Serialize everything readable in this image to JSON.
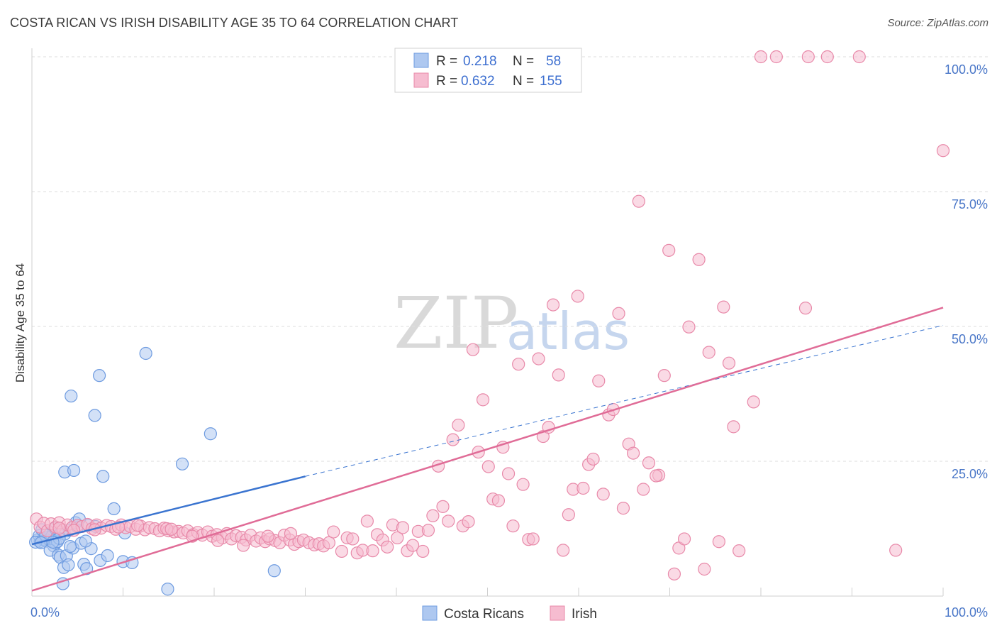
{
  "title": "COSTA RICAN VS IRISH DISABILITY AGE 35 TO 64 CORRELATION CHART",
  "source": "Source: ZipAtlas.com",
  "watermark": {
    "zip": "ZIP",
    "atlas": "atlas"
  },
  "legend": {
    "r_label": "R =",
    "n_label": "N =",
    "rows": [
      {
        "r": "0.218",
        "n": "58"
      },
      {
        "r": "0.632",
        "n": "155"
      }
    ]
  },
  "colors": {
    "costa_fill": "#aec8f0",
    "costa_stroke": "#6e9be0",
    "costa_line": "#3a74d0",
    "irish_fill": "#f6bcd0",
    "irish_stroke": "#e889a9",
    "irish_line": "#e06c97",
    "grid": "#dedede",
    "tick": "#4a77c8"
  },
  "chart_data": {
    "type": "scatter",
    "title": "COSTA RICAN VS IRISH DISABILITY AGE 35 TO 64 CORRELATION CHART",
    "xlabel": "",
    "ylabel": "Disability Age 35 to 64",
    "xlim": [
      0,
      100
    ],
    "ylim": [
      0,
      100
    ],
    "x_ticks": [
      {
        "v": 0,
        "label": "0.0%"
      },
      {
        "v": 100,
        "label": "100.0%"
      }
    ],
    "y_ticks": [
      {
        "v": 25,
        "label": "25.0%"
      },
      {
        "v": 50,
        "label": "50.0%"
      },
      {
        "v": 75,
        "label": "75.0%"
      },
      {
        "v": 100,
        "label": "100.0%"
      }
    ],
    "legend": [
      "Costa Ricans",
      "Irish"
    ],
    "series": [
      {
        "name": "Costa Ricans",
        "R": 0.218,
        "N": 58,
        "trend": {
          "x0": 0,
          "y0": 9.6,
          "x1": 30,
          "y1": 22.2,
          "dash_to_x": 100,
          "dash_to_y": 50.2
        },
        "points": [
          [
            0.6,
            10.4
          ],
          [
            0.9,
            10.1
          ],
          [
            1.2,
            10.5
          ],
          [
            1.4,
            10.8
          ],
          [
            1.6,
            10.2
          ],
          [
            1.8,
            10.9
          ],
          [
            2.0,
            10.3
          ],
          [
            2.2,
            11.1
          ],
          [
            2.4,
            9.3
          ],
          [
            2.6,
            9.8
          ],
          [
            2.8,
            10.1
          ],
          [
            0.8,
            11.2
          ],
          [
            1.1,
            12.3
          ],
          [
            2.5,
            12.6
          ],
          [
            3.2,
            11.8
          ],
          [
            3.6,
            11.5
          ],
          [
            4.1,
            12.2
          ],
          [
            5.0,
            12.8
          ],
          [
            6.2,
            13.1
          ],
          [
            7.0,
            12.9
          ],
          [
            4.8,
            13.6
          ],
          [
            5.2,
            14.3
          ],
          [
            3.0,
            10.7
          ],
          [
            1.5,
            11.3
          ],
          [
            2.0,
            8.5
          ],
          [
            2.9,
            7.6
          ],
          [
            3.1,
            7.2
          ],
          [
            3.8,
            7.5
          ],
          [
            4.5,
            8.9
          ],
          [
            5.4,
            9.8
          ],
          [
            6.5,
            8.8
          ],
          [
            4.2,
            9.2
          ],
          [
            3.5,
            5.3
          ],
          [
            4.0,
            5.8
          ],
          [
            5.7,
            5.9
          ],
          [
            6.0,
            5.1
          ],
          [
            7.5,
            6.6
          ],
          [
            8.3,
            7.5
          ],
          [
            10.0,
            6.4
          ],
          [
            11.0,
            6.2
          ],
          [
            3.4,
            2.3
          ],
          [
            14.9,
            1.3
          ],
          [
            26.6,
            4.7
          ],
          [
            9.0,
            16.2
          ],
          [
            10.2,
            11.7
          ],
          [
            3.6,
            23.0
          ],
          [
            4.6,
            23.3
          ],
          [
            7.8,
            22.2
          ],
          [
            16.5,
            24.5
          ],
          [
            4.3,
            37.1
          ],
          [
            6.9,
            33.5
          ],
          [
            7.4,
            40.9
          ],
          [
            12.5,
            45.0
          ],
          [
            19.6,
            30.1
          ],
          [
            0.4,
            10.0
          ],
          [
            1.0,
            9.9
          ],
          [
            5.9,
            10.2
          ],
          [
            2.3,
            10.0
          ]
        ]
      },
      {
        "name": "Irish",
        "R": 0.632,
        "N": 155,
        "trend": {
          "x0": 0,
          "y0": 1.0,
          "x1": 100,
          "y1": 53.5
        },
        "points": [
          [
            0.5,
            14.3
          ],
          [
            0.9,
            12.8
          ],
          [
            1.3,
            13.5
          ],
          [
            1.7,
            12.1
          ],
          [
            2.1,
            13.4
          ],
          [
            2.6,
            12.8
          ],
          [
            3.0,
            13.6
          ],
          [
            3.4,
            12.2
          ],
          [
            3.9,
            13.2
          ],
          [
            4.4,
            12.7
          ],
          [
            5.0,
            13.1
          ],
          [
            5.5,
            12.9
          ],
          [
            6.1,
            13.3
          ],
          [
            6.6,
            12.5
          ],
          [
            7.1,
            13.2
          ],
          [
            7.6,
            12.6
          ],
          [
            8.2,
            13.1
          ],
          [
            8.7,
            12.9
          ],
          [
            9.2,
            12.4
          ],
          [
            9.8,
            13.2
          ],
          [
            10.3,
            12.7
          ],
          [
            10.8,
            12.9
          ],
          [
            11.4,
            12.4
          ],
          [
            11.9,
            13.0
          ],
          [
            12.4,
            12.3
          ],
          [
            12.9,
            12.7
          ],
          [
            13.5,
            12.5
          ],
          [
            14.0,
            12.1
          ],
          [
            14.5,
            12.6
          ],
          [
            15.0,
            12.1
          ],
          [
            15.6,
            11.9
          ],
          [
            16.1,
            12.0
          ],
          [
            16.6,
            11.7
          ],
          [
            17.1,
            12.1
          ],
          [
            17.7,
            11.4
          ],
          [
            18.2,
            11.8
          ],
          [
            18.7,
            11.3
          ],
          [
            19.3,
            11.9
          ],
          [
            19.8,
            11.1
          ],
          [
            20.3,
            11.4
          ],
          [
            20.9,
            10.8
          ],
          [
            21.4,
            11.6
          ],
          [
            21.9,
            10.6
          ],
          [
            22.4,
            11.2
          ],
          [
            23.0,
            10.9
          ],
          [
            23.5,
            10.4
          ],
          [
            24.0,
            11.3
          ],
          [
            24.6,
            10.2
          ],
          [
            25.1,
            10.8
          ],
          [
            25.6,
            10.1
          ],
          [
            26.1,
            10.6
          ],
          [
            26.7,
            10.3
          ],
          [
            27.2,
            9.9
          ],
          [
            27.7,
            11.3
          ],
          [
            28.3,
            10.4
          ],
          [
            28.8,
            9.6
          ],
          [
            29.3,
            10.1
          ],
          [
            29.8,
            10.4
          ],
          [
            30.4,
            9.9
          ],
          [
            31.0,
            9.5
          ],
          [
            31.5,
            9.7
          ],
          [
            32.0,
            9.3
          ],
          [
            32.6,
            9.9
          ],
          [
            33.1,
            11.9
          ],
          [
            3.0,
            12.6
          ],
          [
            4.6,
            12.2
          ],
          [
            6.9,
            12.3
          ],
          [
            9.5,
            12.8
          ],
          [
            11.6,
            13.1
          ],
          [
            14.8,
            12.5
          ],
          [
            17.6,
            11.1
          ],
          [
            20.4,
            10.3
          ],
          [
            23.2,
            9.4
          ],
          [
            25.9,
            11.1
          ],
          [
            28.4,
            11.6
          ],
          [
            34.0,
            8.3
          ],
          [
            34.6,
            10.8
          ],
          [
            35.2,
            10.6
          ],
          [
            35.7,
            8.0
          ],
          [
            36.3,
            8.5
          ],
          [
            36.8,
            13.9
          ],
          [
            37.4,
            8.4
          ],
          [
            37.9,
            11.4
          ],
          [
            38.5,
            10.4
          ],
          [
            39.0,
            9.1
          ],
          [
            39.6,
            13.2
          ],
          [
            40.1,
            10.8
          ],
          [
            40.7,
            12.7
          ],
          [
            41.2,
            8.4
          ],
          [
            41.8,
            9.4
          ],
          [
            42.4,
            12.0
          ],
          [
            42.9,
            8.3
          ],
          [
            43.5,
            12.2
          ],
          [
            44.0,
            14.9
          ],
          [
            44.6,
            24.1
          ],
          [
            45.1,
            16.6
          ],
          [
            45.7,
            13.9
          ],
          [
            46.2,
            29.0
          ],
          [
            46.8,
            31.7
          ],
          [
            47.3,
            13.0
          ],
          [
            47.9,
            13.8
          ],
          [
            48.4,
            45.7
          ],
          [
            49.0,
            26.7
          ],
          [
            49.5,
            36.4
          ],
          [
            50.1,
            24.0
          ],
          [
            50.6,
            18.0
          ],
          [
            51.2,
            17.7
          ],
          [
            51.7,
            27.6
          ],
          [
            52.3,
            22.7
          ],
          [
            52.8,
            13.0
          ],
          [
            53.4,
            43.0
          ],
          [
            53.9,
            20.7
          ],
          [
            54.5,
            10.5
          ],
          [
            55.0,
            10.6
          ],
          [
            55.6,
            44.0
          ],
          [
            56.1,
            29.6
          ],
          [
            56.7,
            31.3
          ],
          [
            57.2,
            54.0
          ],
          [
            57.8,
            41.0
          ],
          [
            58.3,
            8.5
          ],
          [
            58.9,
            15.1
          ],
          [
            59.4,
            19.8
          ],
          [
            59.9,
            55.6
          ],
          [
            60.5,
            20.0
          ],
          [
            61.1,
            24.4
          ],
          [
            61.6,
            25.4
          ],
          [
            62.2,
            39.9
          ],
          [
            62.7,
            18.9
          ],
          [
            63.3,
            33.6
          ],
          [
            63.8,
            34.6
          ],
          [
            64.4,
            52.4
          ],
          [
            64.9,
            16.3
          ],
          [
            65.5,
            28.2
          ],
          [
            66.0,
            26.5
          ],
          [
            66.6,
            73.2
          ],
          [
            67.1,
            19.8
          ],
          [
            67.7,
            24.7
          ],
          [
            68.8,
            22.4
          ],
          [
            69.4,
            40.9
          ],
          [
            69.9,
            64.1
          ],
          [
            70.5,
            4.1
          ],
          [
            71.0,
            8.9
          ],
          [
            71.6,
            10.6
          ],
          [
            72.1,
            49.9
          ],
          [
            73.2,
            62.4
          ],
          [
            73.8,
            5.0
          ],
          [
            74.3,
            45.2
          ],
          [
            75.4,
            10.1
          ],
          [
            75.9,
            53.6
          ],
          [
            76.5,
            43.2
          ],
          [
            77.0,
            31.4
          ],
          [
            77.6,
            8.4
          ],
          [
            79.2,
            36.0
          ],
          [
            80.0,
            100.0
          ],
          [
            81.7,
            100.0
          ],
          [
            84.9,
            53.4
          ],
          [
            85.2,
            100.0
          ],
          [
            87.3,
            100.0
          ],
          [
            90.8,
            100.0
          ],
          [
            94.8,
            8.5
          ],
          [
            100.0,
            82.6
          ],
          [
            68.5,
            22.3
          ],
          [
            15.3,
            12.4
          ]
        ]
      }
    ]
  }
}
